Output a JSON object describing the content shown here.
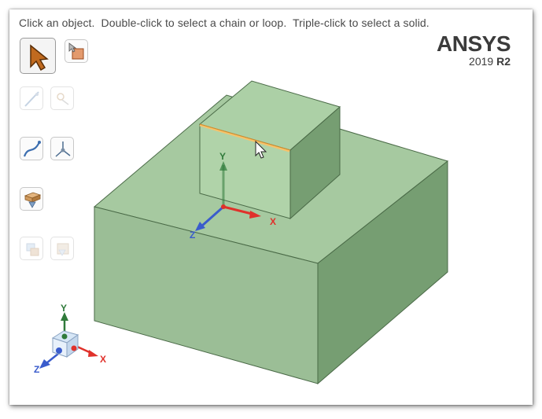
{
  "instruction_text": "Click an object.  Double-click to select a chain or loop.  Triple-click to select a solid.",
  "brand": {
    "name": "ANSYS",
    "version_year": "2019",
    "version_release": "R2"
  },
  "toolbar": {
    "tools": [
      {
        "icon": "select-arrow-icon",
        "state": "active"
      },
      {
        "icon": "select-faces-icon",
        "state": "enabled"
      },
      {
        "icon": "select-edge-icon",
        "state": "disabled"
      },
      {
        "icon": "select-vertex-icon",
        "state": "disabled"
      },
      {
        "icon": "select-curve-icon",
        "state": "enabled"
      },
      {
        "icon": "select-point-axes-icon",
        "state": "enabled"
      },
      {
        "icon": "select-body-icon",
        "state": "enabled"
      },
      {
        "icon": "select-component-icon",
        "state": "disabled"
      },
      {
        "icon": "select-assembly-icon",
        "state": "disabled"
      }
    ]
  },
  "model_triad": {
    "x": "X",
    "y": "Y",
    "z": "Z"
  },
  "view_triad": {
    "x": "X",
    "y": "Y",
    "z": "Z"
  },
  "colors": {
    "body_top": "#a6c9a0",
    "body_front": "#9bbe96",
    "body_side": "#769e72",
    "edge": "#4a6a47",
    "selected_edge": "#f6c36b",
    "axis_x": "#e0312b",
    "axis_y": "#2f7a3a",
    "axis_z": "#3a5ccc"
  }
}
